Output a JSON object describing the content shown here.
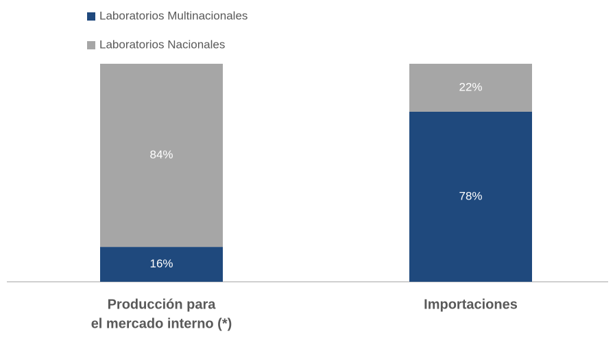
{
  "chart_data": {
    "type": "stacked_bar",
    "categories": [
      [
        "Producción para",
        "el mercado interno (*)"
      ],
      [
        "Importaciones"
      ]
    ],
    "series": [
      {
        "name": "Laboratorios Multinacionales",
        "color": "#1f497d",
        "values": [
          16,
          78
        ],
        "value_labels": [
          "16%",
          "78%"
        ]
      },
      {
        "name": "Laboratorios Nacionales",
        "color": "#a6a6a6",
        "values": [
          84,
          22
        ],
        "value_labels": [
          "84%",
          "22%"
        ]
      }
    ],
    "ylim": [
      0,
      100
    ]
  }
}
